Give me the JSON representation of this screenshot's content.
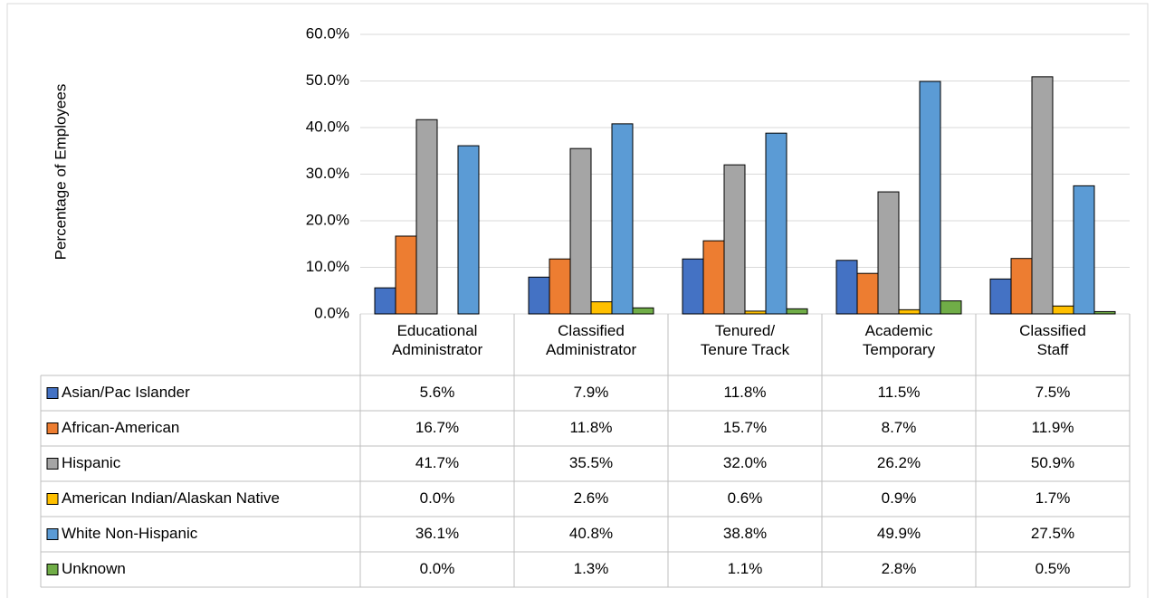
{
  "chart_data": {
    "type": "bar",
    "y_label": "Percentage of Employees",
    "categories": [
      "Educational Administrator",
      "Classified Administrator",
      "Tenured/ Tenure Track",
      "Academic Temporary",
      "Classified Staff"
    ],
    "series": [
      {
        "name": "Asian/Pac Islander",
        "color": "#4472c4",
        "values": [
          5.6,
          7.9,
          11.8,
          11.5,
          7.5
        ],
        "value_labels": [
          "5.6%",
          "7.9%",
          "11.8%",
          "11.5%",
          "7.5%"
        ]
      },
      {
        "name": "African-American",
        "color": "#ed7d31",
        "values": [
          16.7,
          11.8,
          15.7,
          8.7,
          11.9
        ],
        "value_labels": [
          "16.7%",
          "11.8%",
          "15.7%",
          "8.7%",
          "11.9%"
        ]
      },
      {
        "name": "Hispanic",
        "color": "#a5a5a5",
        "values": [
          41.7,
          35.5,
          32.0,
          26.2,
          50.9
        ],
        "value_labels": [
          "41.7%",
          "35.5%",
          "32.0%",
          "26.2%",
          "50.9%"
        ]
      },
      {
        "name": "American Indian/Alaskan Native",
        "color": "#ffc000",
        "values": [
          0.0,
          2.6,
          0.6,
          0.9,
          1.7
        ],
        "value_labels": [
          "0.0%",
          "2.6%",
          "0.6%",
          "0.9%",
          "1.7%"
        ]
      },
      {
        "name": "White Non-Hispanic",
        "color": "#5b9bd5",
        "values": [
          36.1,
          40.8,
          38.8,
          49.9,
          27.5
        ],
        "value_labels": [
          "36.1%",
          "40.8%",
          "38.8%",
          "49.9%",
          "27.5%"
        ]
      },
      {
        "name": "Unknown",
        "color": "#70ad47",
        "values": [
          0.0,
          1.3,
          1.1,
          2.8,
          0.5
        ],
        "value_labels": [
          "0.0%",
          "1.3%",
          "1.1%",
          "2.8%",
          "0.5%"
        ]
      }
    ],
    "ylim": [
      0,
      60
    ],
    "yticks": [
      {
        "value": 0,
        "label": "0.0%"
      },
      {
        "value": 10,
        "label": "10.0%"
      },
      {
        "value": 20,
        "label": "20.0%"
      },
      {
        "value": 30,
        "label": "30.0%"
      },
      {
        "value": 40,
        "label": "40.0%"
      },
      {
        "value": 50,
        "label": "50.0%"
      },
      {
        "value": 60,
        "label": "60.0%"
      }
    ],
    "grid": true
  }
}
